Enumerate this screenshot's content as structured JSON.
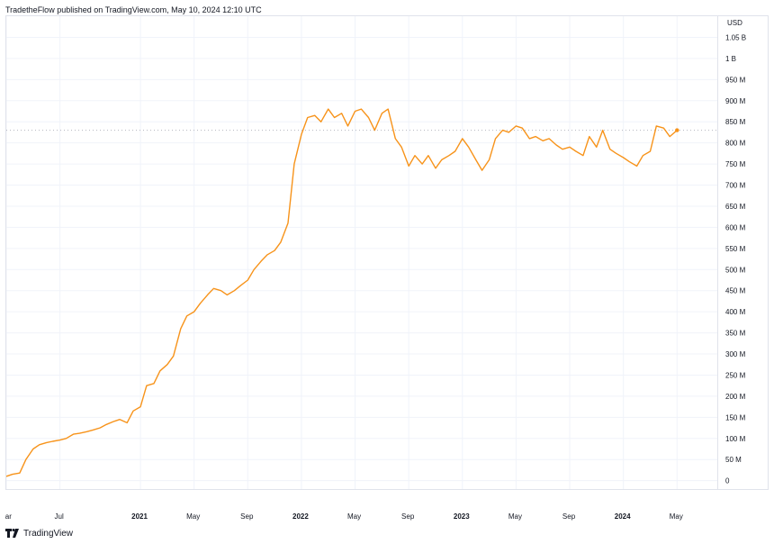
{
  "header": {
    "text": "TradetheFlow published on TradingView.com, May 10, 2024 12:10 UTC"
  },
  "price_axis": {
    "currency": "USD"
  },
  "footer": {
    "brand": "TradingView"
  },
  "colors": {
    "line": "#f7931a",
    "grid": "#f0f3fa",
    "price_line": "#b2b5be"
  },
  "chart_data": {
    "type": "line",
    "title": "",
    "xlabel": "",
    "ylabel": "",
    "ylim": [
      -20000000,
      1100000000
    ],
    "y_ticks": [
      {
        "value": 0,
        "label": "0"
      },
      {
        "value": 50000000,
        "label": "50 M"
      },
      {
        "value": 100000000,
        "label": "100 M"
      },
      {
        "value": 150000000,
        "label": "150 M"
      },
      {
        "value": 200000000,
        "label": "200 M"
      },
      {
        "value": 250000000,
        "label": "250 M"
      },
      {
        "value": 300000000,
        "label": "300 M"
      },
      {
        "value": 350000000,
        "label": "350 M"
      },
      {
        "value": 400000000,
        "label": "400 M"
      },
      {
        "value": 450000000,
        "label": "450 M"
      },
      {
        "value": 500000000,
        "label": "500 M"
      },
      {
        "value": 550000000,
        "label": "550 M"
      },
      {
        "value": 600000000,
        "label": "600 M"
      },
      {
        "value": 650000000,
        "label": "650 M"
      },
      {
        "value": 700000000,
        "label": "700 M"
      },
      {
        "value": 750000000,
        "label": "750 M"
      },
      {
        "value": 800000000,
        "label": "800 M"
      },
      {
        "value": 850000000,
        "label": "850 M"
      },
      {
        "value": 900000000,
        "label": "900 M"
      },
      {
        "value": 950000000,
        "label": "950 M"
      },
      {
        "value": 1000000000,
        "label": "1 B"
      },
      {
        "value": 1050000000,
        "label": "1.05 B"
      }
    ],
    "x_ticks": [
      {
        "date": "2020-03",
        "label": "Mar",
        "bold": false
      },
      {
        "date": "2020-07",
        "label": "Jul",
        "bold": false
      },
      {
        "date": "2021-01",
        "label": "2021",
        "bold": true
      },
      {
        "date": "2021-05",
        "label": "May",
        "bold": false
      },
      {
        "date": "2021-09",
        "label": "Sep",
        "bold": false
      },
      {
        "date": "2022-01",
        "label": "2022",
        "bold": true
      },
      {
        "date": "2022-05",
        "label": "May",
        "bold": false
      },
      {
        "date": "2022-09",
        "label": "Sep",
        "bold": false
      },
      {
        "date": "2023-01",
        "label": "2023",
        "bold": true
      },
      {
        "date": "2023-05",
        "label": "May",
        "bold": false
      },
      {
        "date": "2023-09",
        "label": "Sep",
        "bold": false
      },
      {
        "date": "2024-01",
        "label": "2024",
        "bold": true
      },
      {
        "date": "2024-05",
        "label": "May",
        "bold": false
      }
    ],
    "xlim": [
      "2020-03",
      "2024-08"
    ],
    "grid": true,
    "current_value": 830000000,
    "series": [
      {
        "points": [
          [
            "2020-03",
            10000000
          ],
          [
            "2020-03-15",
            15000000
          ],
          [
            "2020-04",
            18000000
          ],
          [
            "2020-04-15",
            50000000
          ],
          [
            "2020-05",
            75000000
          ],
          [
            "2020-05-15",
            85000000
          ],
          [
            "2020-06",
            90000000
          ],
          [
            "2020-06-15",
            93000000
          ],
          [
            "2020-07",
            96000000
          ],
          [
            "2020-07-15",
            100000000
          ],
          [
            "2020-08",
            110000000
          ],
          [
            "2020-08-15",
            112000000
          ],
          [
            "2020-09",
            116000000
          ],
          [
            "2020-09-15",
            120000000
          ],
          [
            "2020-10",
            125000000
          ],
          [
            "2020-10-15",
            133000000
          ],
          [
            "2020-11",
            140000000
          ],
          [
            "2020-11-15",
            145000000
          ],
          [
            "2020-12",
            137000000
          ],
          [
            "2020-12-15",
            165000000
          ],
          [
            "2021-01",
            175000000
          ],
          [
            "2021-01-15",
            225000000
          ],
          [
            "2021-02",
            230000000
          ],
          [
            "2021-02-15",
            260000000
          ],
          [
            "2021-03",
            275000000
          ],
          [
            "2021-03-15",
            295000000
          ],
          [
            "2021-04",
            360000000
          ],
          [
            "2021-04-15",
            390000000
          ],
          [
            "2021-05",
            400000000
          ],
          [
            "2021-05-15",
            420000000
          ],
          [
            "2021-06",
            440000000
          ],
          [
            "2021-06-15",
            455000000
          ],
          [
            "2021-07",
            450000000
          ],
          [
            "2021-07-15",
            440000000
          ],
          [
            "2021-08",
            450000000
          ],
          [
            "2021-08-15",
            462000000
          ],
          [
            "2021-09",
            475000000
          ],
          [
            "2021-09-15",
            500000000
          ],
          [
            "2021-10",
            520000000
          ],
          [
            "2021-10-15",
            535000000
          ],
          [
            "2021-11",
            545000000
          ],
          [
            "2021-11-15",
            565000000
          ],
          [
            "2021-12",
            610000000
          ],
          [
            "2021-12-15",
            750000000
          ],
          [
            "2022-01",
            820000000
          ],
          [
            "2022-01-15",
            860000000
          ],
          [
            "2022-02",
            865000000
          ],
          [
            "2022-02-15",
            850000000
          ],
          [
            "2022-03",
            880000000
          ],
          [
            "2022-03-15",
            860000000
          ],
          [
            "2022-04",
            870000000
          ],
          [
            "2022-04-15",
            840000000
          ],
          [
            "2022-05",
            875000000
          ],
          [
            "2022-05-15",
            880000000
          ],
          [
            "2022-06",
            860000000
          ],
          [
            "2022-06-15",
            830000000
          ],
          [
            "2022-07",
            870000000
          ],
          [
            "2022-07-15",
            880000000
          ],
          [
            "2022-08",
            810000000
          ],
          [
            "2022-08-15",
            790000000
          ],
          [
            "2022-09",
            745000000
          ],
          [
            "2022-09-15",
            770000000
          ],
          [
            "2022-10",
            750000000
          ],
          [
            "2022-10-15",
            770000000
          ],
          [
            "2022-11",
            740000000
          ],
          [
            "2022-11-15",
            760000000
          ],
          [
            "2022-12",
            770000000
          ],
          [
            "2022-12-15",
            780000000
          ],
          [
            "2023-01",
            810000000
          ],
          [
            "2023-01-15",
            790000000
          ],
          [
            "2023-02",
            760000000
          ],
          [
            "2023-02-15",
            735000000
          ],
          [
            "2023-03",
            760000000
          ],
          [
            "2023-03-15",
            810000000
          ],
          [
            "2023-04",
            830000000
          ],
          [
            "2023-04-15",
            825000000
          ],
          [
            "2023-05",
            840000000
          ],
          [
            "2023-05-15",
            835000000
          ],
          [
            "2023-06",
            810000000
          ],
          [
            "2023-06-15",
            815000000
          ],
          [
            "2023-07",
            805000000
          ],
          [
            "2023-07-15",
            810000000
          ],
          [
            "2023-08",
            795000000
          ],
          [
            "2023-08-15",
            785000000
          ],
          [
            "2023-09",
            790000000
          ],
          [
            "2023-09-15",
            780000000
          ],
          [
            "2023-10",
            770000000
          ],
          [
            "2023-10-15",
            815000000
          ],
          [
            "2023-11",
            790000000
          ],
          [
            "2023-11-15",
            830000000
          ],
          [
            "2023-12",
            785000000
          ],
          [
            "2023-12-15",
            775000000
          ],
          [
            "2024-01",
            765000000
          ],
          [
            "2024-01-15",
            755000000
          ],
          [
            "2024-02",
            745000000
          ],
          [
            "2024-02-15",
            770000000
          ],
          [
            "2024-03",
            780000000
          ],
          [
            "2024-03-15",
            840000000
          ],
          [
            "2024-04",
            835000000
          ],
          [
            "2024-04-15",
            815000000
          ],
          [
            "2024-05",
            830000000
          ]
        ]
      }
    ]
  }
}
